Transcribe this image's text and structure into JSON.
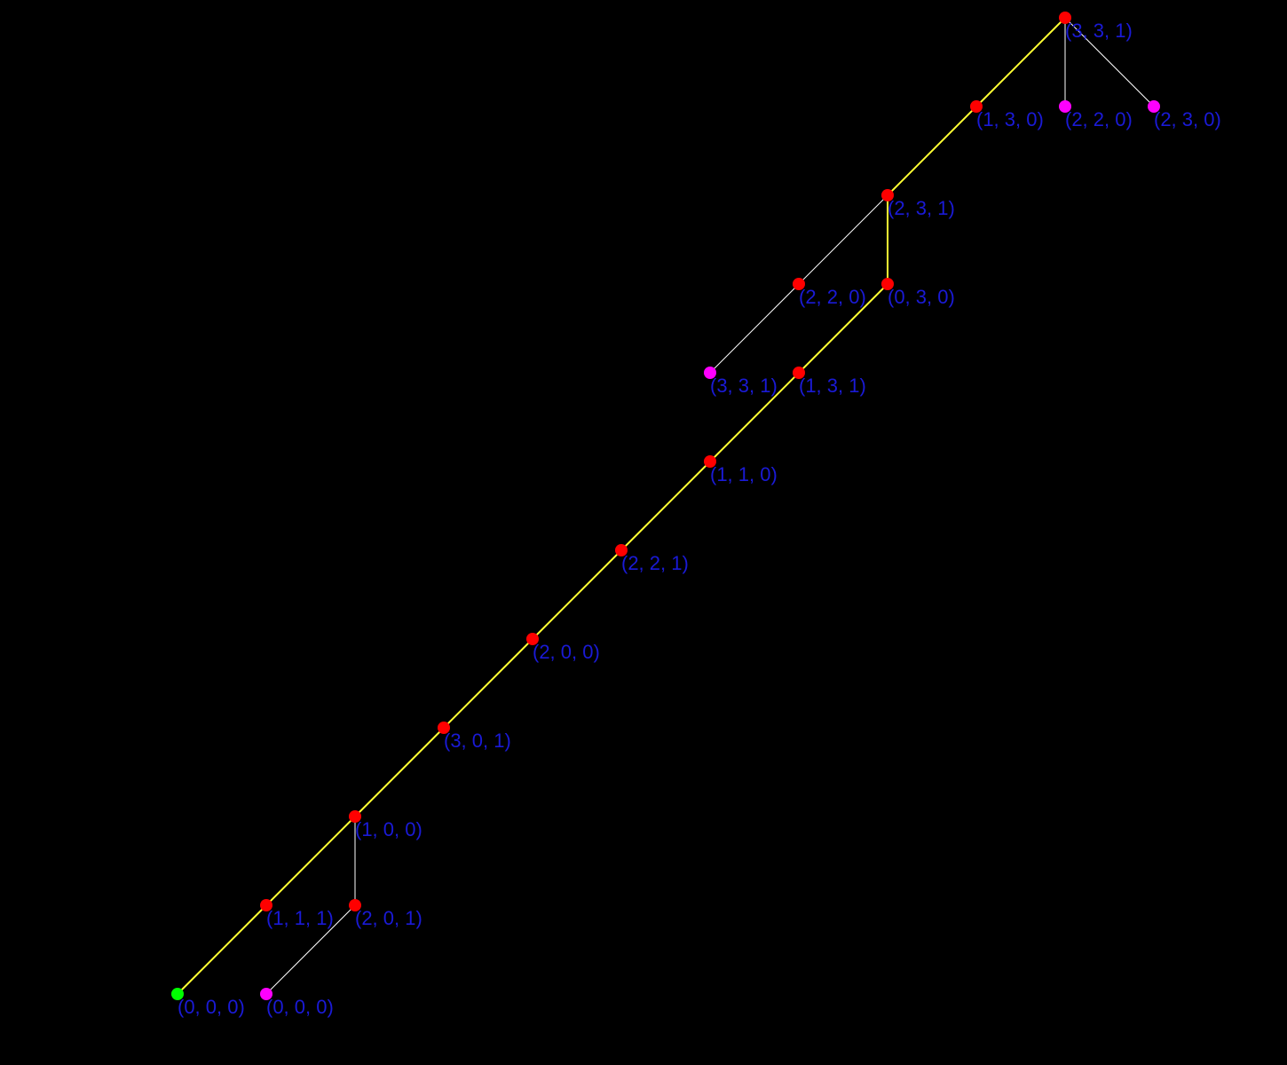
{
  "colors": {
    "background": "#000000",
    "path_edge": "#ffff33",
    "tree_edge": "#ffffff",
    "label": "#1a1ad6",
    "node_start": "#00ff00",
    "node_internal": "#ff0000",
    "node_leaf": "#ff00ff"
  },
  "nodes": [
    {
      "id": "n0",
      "label": "(0, 0, 0)",
      "kind": "start"
    },
    {
      "id": "n1",
      "label": "(0, 0, 0)",
      "kind": "leaf"
    },
    {
      "id": "n2",
      "label": "(1, 1, 1)",
      "kind": "internal"
    },
    {
      "id": "n3",
      "label": "(2, 0, 1)",
      "kind": "internal"
    },
    {
      "id": "n4",
      "label": "(1, 0, 0)",
      "kind": "internal"
    },
    {
      "id": "n5",
      "label": "(3, 0, 1)",
      "kind": "internal"
    },
    {
      "id": "n6",
      "label": "(2, 0, 0)",
      "kind": "internal"
    },
    {
      "id": "n7",
      "label": "(2, 2, 1)",
      "kind": "internal"
    },
    {
      "id": "n8",
      "label": "(1, 1, 0)",
      "kind": "internal"
    },
    {
      "id": "n9",
      "label": "(3, 3, 1)",
      "kind": "leaf"
    },
    {
      "id": "n10",
      "label": "(1, 3, 1)",
      "kind": "internal"
    },
    {
      "id": "n11",
      "label": "(2, 2, 0)",
      "kind": "internal"
    },
    {
      "id": "n12",
      "label": "(0, 3, 0)",
      "kind": "internal"
    },
    {
      "id": "n13",
      "label": "(2, 3, 1)",
      "kind": "internal"
    },
    {
      "id": "n14",
      "label": "(1, 3, 0)",
      "kind": "internal"
    },
    {
      "id": "n15",
      "label": "(2, 2, 0)",
      "kind": "leaf"
    },
    {
      "id": "n16",
      "label": "(2, 3, 0)",
      "kind": "leaf"
    },
    {
      "id": "n17",
      "label": "(3, 3, 1)",
      "kind": "internal"
    }
  ],
  "edges": [
    {
      "from": "n0",
      "to": "n2",
      "kind": "path"
    },
    {
      "from": "n2",
      "to": "n4",
      "kind": "path"
    },
    {
      "from": "n4",
      "to": "n5",
      "kind": "path"
    },
    {
      "from": "n5",
      "to": "n6",
      "kind": "path"
    },
    {
      "from": "n6",
      "to": "n7",
      "kind": "path"
    },
    {
      "from": "n7",
      "to": "n8",
      "kind": "path"
    },
    {
      "from": "n8",
      "to": "n10",
      "kind": "path"
    },
    {
      "from": "n10",
      "to": "n12",
      "kind": "path"
    },
    {
      "from": "n12",
      "to": "n13",
      "kind": "path"
    },
    {
      "from": "n13",
      "to": "n14",
      "kind": "path"
    },
    {
      "from": "n14",
      "to": "n17",
      "kind": "path"
    },
    {
      "from": "n4",
      "to": "n3",
      "kind": "tree"
    },
    {
      "from": "n3",
      "to": "n1",
      "kind": "tree"
    },
    {
      "from": "n13",
      "to": "n11",
      "kind": "tree"
    },
    {
      "from": "n11",
      "to": "n9",
      "kind": "tree"
    },
    {
      "from": "n17",
      "to": "n15",
      "kind": "tree"
    },
    {
      "from": "n17",
      "to": "n16",
      "kind": "tree"
    }
  ]
}
